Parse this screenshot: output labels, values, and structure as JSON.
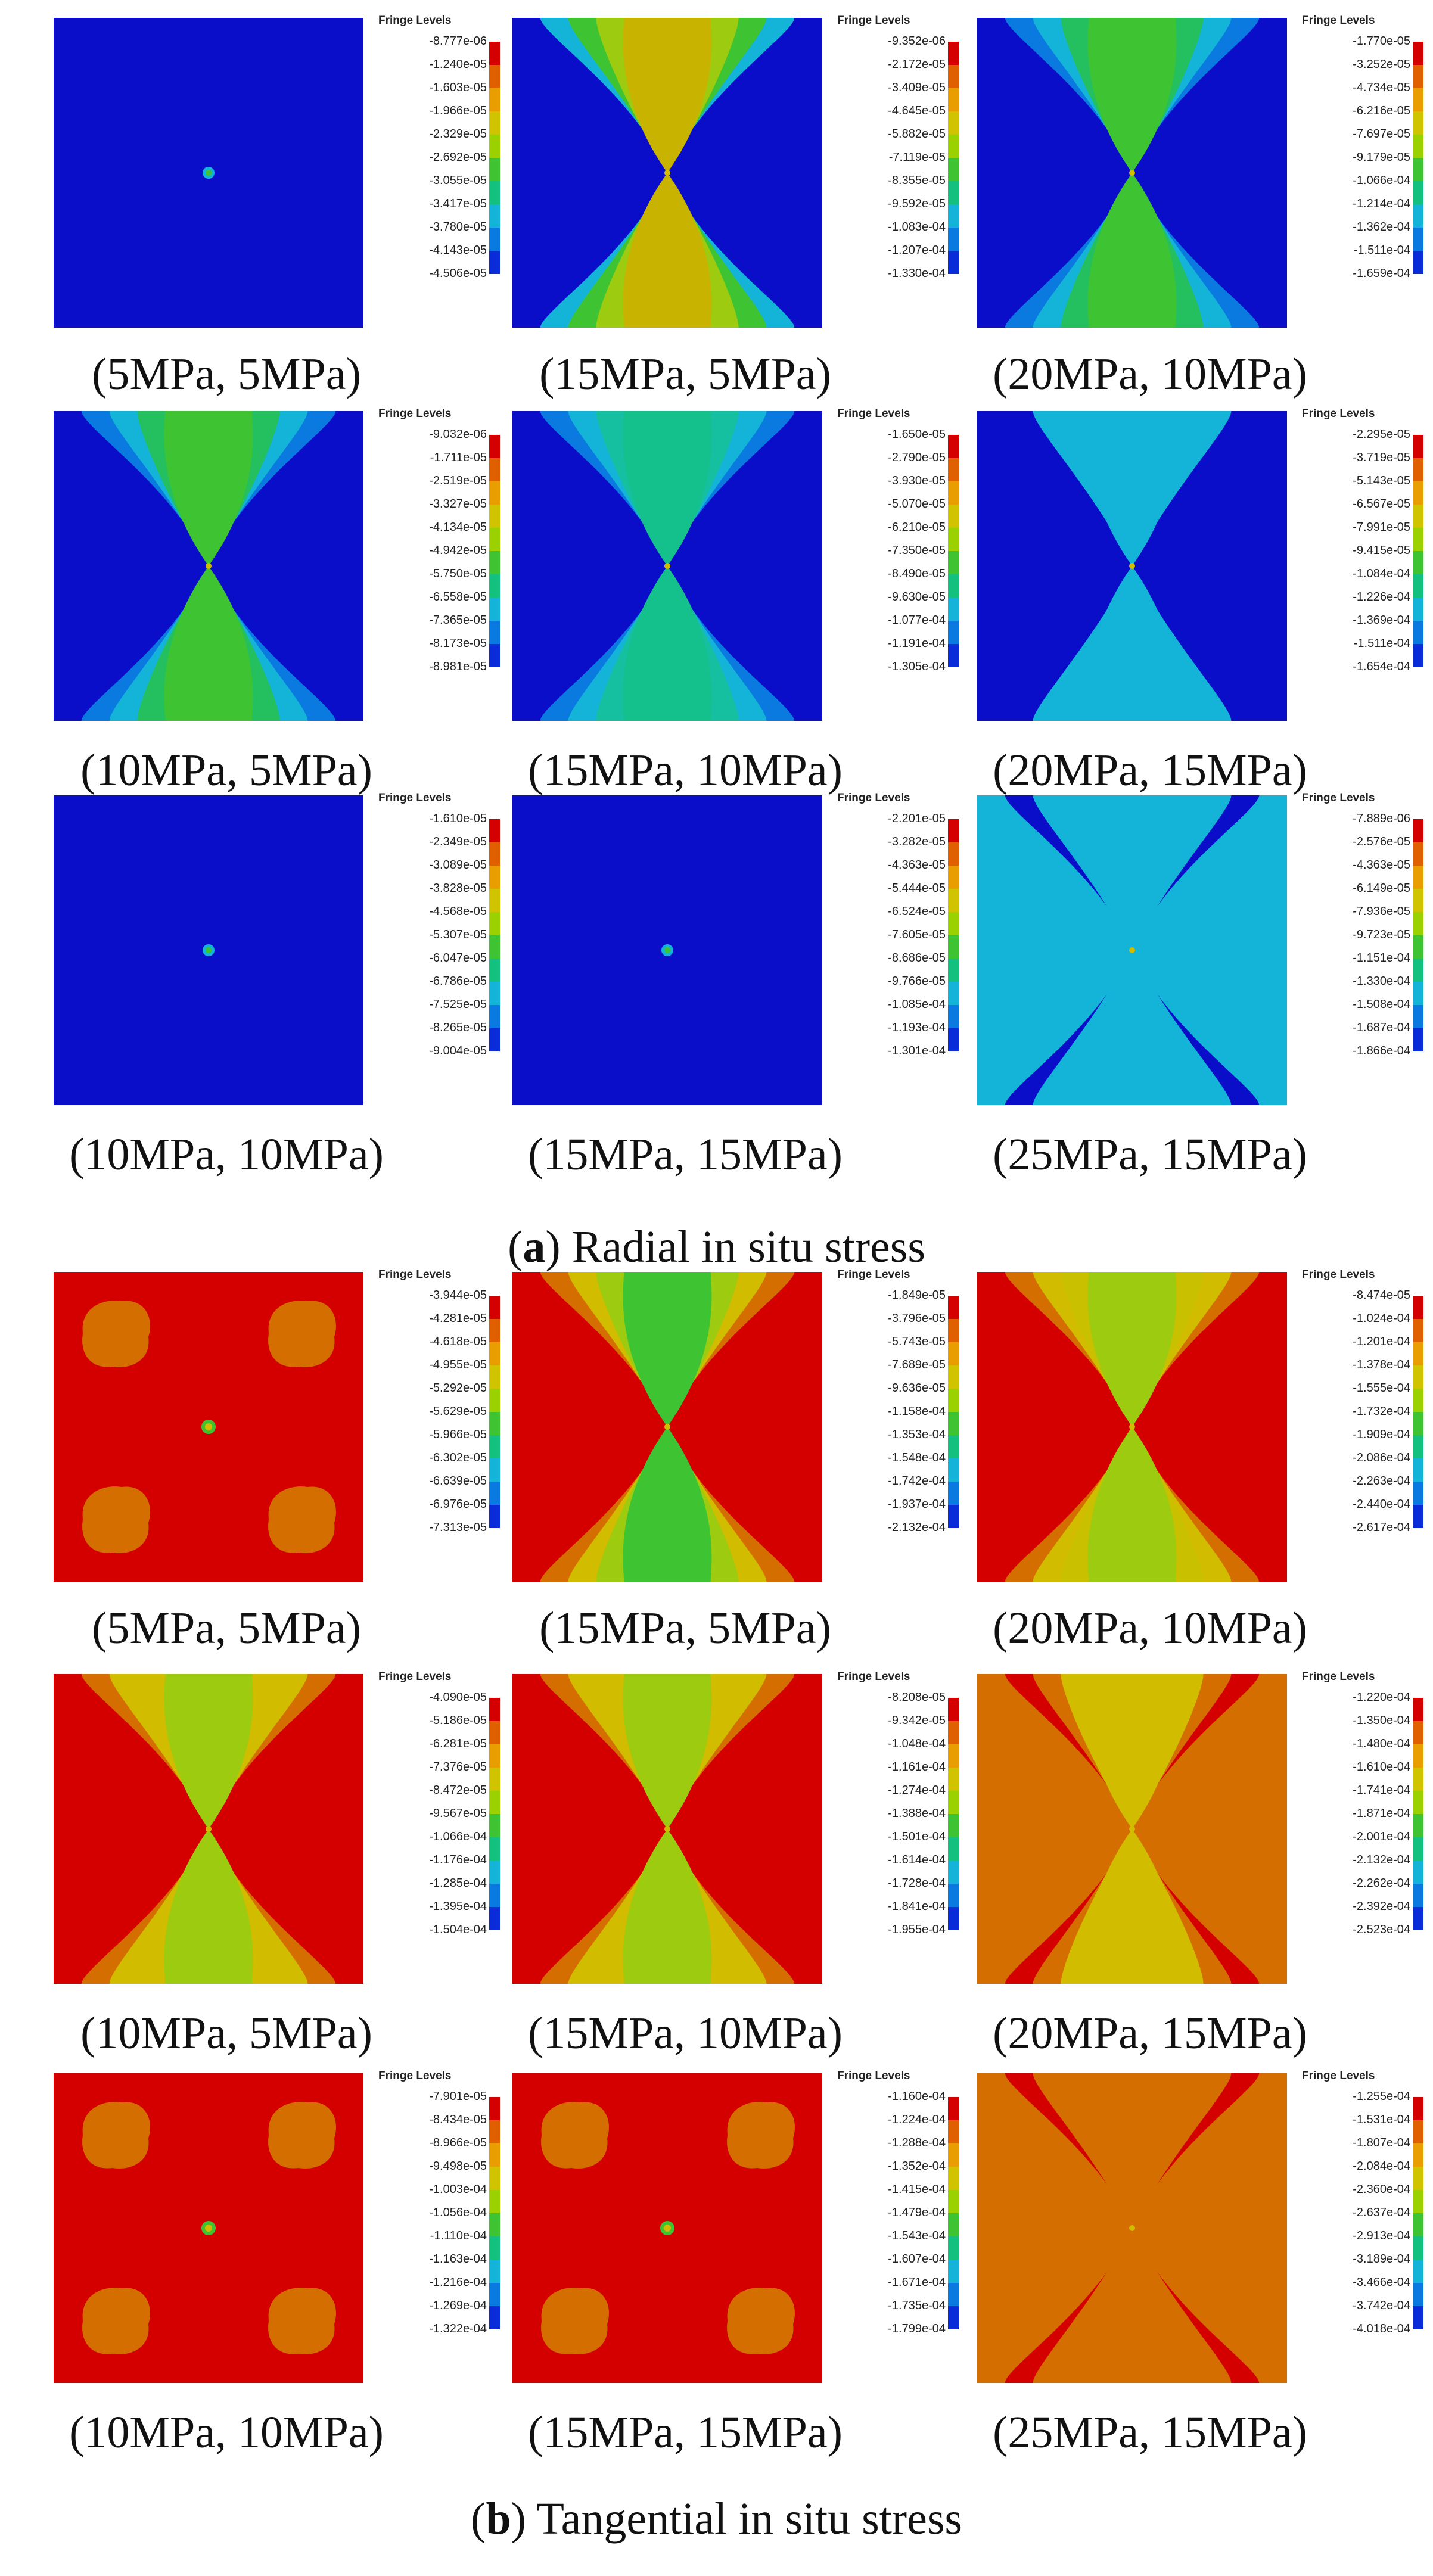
{
  "legend_title": "Fringe Levels",
  "colors": {
    "red": "#d40000",
    "orange_red": "#e06000",
    "orange": "#d46e00",
    "yellow_orange": "#e8a000",
    "yellow": "#d1bc00",
    "yellow_green": "#9ccb0f",
    "green": "#3ec432",
    "green2": "#24bf5f",
    "teal": "#12bfa9",
    "cyan": "#14b4d8",
    "sky": "#0a7ae0",
    "blue": "#0c1cd0",
    "navy": "#0a0ec8"
  },
  "legend_colors": [
    "#d40000",
    "#e06000",
    "#e89d00",
    "#d0c400",
    "#9bd100",
    "#3ec432",
    "#14c07e",
    "#14b4d8",
    "#0a7ae0",
    "#0a2cd8",
    "#0a0ec8"
  ],
  "sections": [
    {
      "title_prefix": "(",
      "title_letter": "a",
      "title_suffix": ") Radial in situ stress",
      "panels": [
        {
          "caption": "(5MPa, 5MPa)",
          "legend": [
            "-8.777e-06",
            "-1.240e-05",
            "-1.603e-05",
            "-1.966e-05",
            "-2.329e-05",
            "-2.692e-05",
            "-3.055e-05",
            "-3.417e-05",
            "-3.780e-05",
            "-4.143e-05",
            "-4.506e-05"
          ],
          "pattern": "uniform",
          "palette": [
            "#0a0ec8",
            "#0a0ec8",
            "#0a0ec8",
            "#0a0ec8"
          ]
        },
        {
          "caption": "(15MPa, 5MPa)",
          "legend": [
            "-9.352e-06",
            "-2.172e-05",
            "-3.409e-05",
            "-4.645e-05",
            "-5.882e-05",
            "-7.119e-05",
            "-8.355e-05",
            "-9.592e-05",
            "-1.083e-04",
            "-1.207e-04",
            "-1.330e-04"
          ],
          "pattern": "xcross",
          "palette": [
            "#0a0ec8",
            "#14b4d8",
            "#3ec432",
            "#9ccb0f",
            "#c8b400"
          ]
        },
        {
          "caption": "(20MPa, 10MPa)",
          "legend": [
            "-1.770e-05",
            "-3.252e-05",
            "-4.734e-05",
            "-6.216e-05",
            "-7.697e-05",
            "-9.179e-05",
            "-1.066e-04",
            "-1.214e-04",
            "-1.362e-04",
            "-1.511e-04",
            "-1.659e-04"
          ],
          "pattern": "xcross",
          "palette": [
            "#0a0ec8",
            "#0a7ae0",
            "#14b4d8",
            "#24bf5f",
            "#3ec432"
          ]
        },
        {
          "caption": "(10MPa, 5MPa)",
          "legend": [
            "-9.032e-06",
            "-1.711e-05",
            "-2.519e-05",
            "-3.327e-05",
            "-4.134e-05",
            "-4.942e-05",
            "-5.750e-05",
            "-6.558e-05",
            "-7.365e-05",
            "-8.173e-05",
            "-8.981e-05"
          ],
          "pattern": "xcross",
          "palette": [
            "#0a0ec8",
            "#0a7ae0",
            "#14b4d8",
            "#24bf5f",
            "#3ec432"
          ]
        },
        {
          "caption": "(15MPa, 10MPa)",
          "legend": [
            "-1.650e-05",
            "-2.790e-05",
            "-3.930e-05",
            "-5.070e-05",
            "-6.210e-05",
            "-7.350e-05",
            "-8.490e-05",
            "-9.630e-05",
            "-1.077e-04",
            "-1.191e-04",
            "-1.305e-04"
          ],
          "pattern": "xcross",
          "palette": [
            "#0a0ec8",
            "#0a7ae0",
            "#14b4d8",
            "#14c0a0",
            "#14c08c"
          ]
        },
        {
          "caption": "(20MPa, 15MPa)",
          "legend": [
            "-2.295e-05",
            "-3.719e-05",
            "-5.143e-05",
            "-6.567e-05",
            "-7.991e-05",
            "-9.415e-05",
            "-1.084e-04",
            "-1.226e-04",
            "-1.369e-04",
            "-1.511e-04",
            "-1.654e-04"
          ],
          "pattern": "xcross",
          "palette": [
            "#0a0ec8",
            "#0a0ec8",
            "#14b4d8",
            "#14b4d8",
            "#14b4d8"
          ]
        },
        {
          "caption": "(10MPa, 10MPa)",
          "legend": [
            "-1.610e-05",
            "-2.349e-05",
            "-3.089e-05",
            "-3.828e-05",
            "-4.568e-05",
            "-5.307e-05",
            "-6.047e-05",
            "-6.786e-05",
            "-7.525e-05",
            "-8.265e-05",
            "-9.004e-05"
          ],
          "pattern": "uniform",
          "palette": [
            "#0a0ec8",
            "#0a0ec8",
            "#0a0ec8",
            "#0a0ec8"
          ]
        },
        {
          "caption": "(15MPa, 15MPa)",
          "legend": [
            "-2.201e-05",
            "-3.282e-05",
            "-4.363e-05",
            "-5.444e-05",
            "-6.524e-05",
            "-7.605e-05",
            "-8.686e-05",
            "-9.766e-05",
            "-1.085e-04",
            "-1.193e-04",
            "-1.301e-04"
          ],
          "pattern": "uniform",
          "palette": [
            "#0a0ec8",
            "#0a0ec8",
            "#0a0ec8",
            "#0a0ec8"
          ]
        },
        {
          "caption": "(25MPa, 15MPa)",
          "legend": [
            "-7.889e-06",
            "-2.576e-05",
            "-4.363e-05",
            "-6.149e-05",
            "-7.936e-05",
            "-9.723e-05",
            "-1.151e-04",
            "-1.330e-04",
            "-1.508e-04",
            "-1.687e-04",
            "-1.866e-04"
          ],
          "pattern": "xcross",
          "palette": [
            "#14b4d8",
            "#0a0ec8",
            "#14b4d8",
            "#14b4d8",
            "#14b4d8"
          ]
        }
      ]
    },
    {
      "title_prefix": "(",
      "title_letter": "b",
      "title_suffix": ") Tangential in situ stress",
      "panels": [
        {
          "caption": "(5MPa, 5MPa)",
          "legend": [
            "-3.944e-05",
            "-4.281e-05",
            "-4.618e-05",
            "-4.955e-05",
            "-5.292e-05",
            "-5.629e-05",
            "-5.966e-05",
            "-6.302e-05",
            "-6.639e-05",
            "-6.976e-05",
            "-7.313e-05"
          ],
          "pattern": "blobs",
          "palette": [
            "#d40000",
            "#d46e00"
          ]
        },
        {
          "caption": "(15MPa, 5MPa)",
          "legend": [
            "-1.849e-05",
            "-3.796e-05",
            "-5.743e-05",
            "-7.689e-05",
            "-9.636e-05",
            "-1.158e-04",
            "-1.353e-04",
            "-1.548e-04",
            "-1.742e-04",
            "-1.937e-04",
            "-2.132e-04"
          ],
          "pattern": "xcross",
          "palette": [
            "#d40000",
            "#d46e00",
            "#d1bc00",
            "#9ccb0f",
            "#3ec432"
          ]
        },
        {
          "caption": "(20MPa, 10MPa)",
          "legend": [
            "-8.474e-05",
            "-1.024e-04",
            "-1.201e-04",
            "-1.378e-04",
            "-1.555e-04",
            "-1.732e-04",
            "-1.909e-04",
            "-2.086e-04",
            "-2.263e-04",
            "-2.440e-04",
            "-2.617e-04"
          ],
          "pattern": "xcross",
          "palette": [
            "#d40000",
            "#d46e00",
            "#d1bc00",
            "#c9c000",
            "#9ccb0f"
          ]
        },
        {
          "caption": "(10MPa, 5MPa)",
          "legend": [
            "-4.090e-05",
            "-5.186e-05",
            "-6.281e-05",
            "-7.376e-05",
            "-8.472e-05",
            "-9.567e-05",
            "-1.066e-04",
            "-1.176e-04",
            "-1.285e-04",
            "-1.395e-04",
            "-1.504e-04"
          ],
          "pattern": "xcross",
          "palette": [
            "#d40000",
            "#d46e00",
            "#d1bc00",
            "#d1bc00",
            "#9ccb0f"
          ]
        },
        {
          "caption": "(15MPa, 10MPa)",
          "legend": [
            "-8.208e-05",
            "-9.342e-05",
            "-1.048e-04",
            "-1.161e-04",
            "-1.274e-04",
            "-1.388e-04",
            "-1.501e-04",
            "-1.614e-04",
            "-1.728e-04",
            "-1.841e-04",
            "-1.955e-04"
          ],
          "pattern": "xcross",
          "palette": [
            "#d40000",
            "#d46e00",
            "#d1bc00",
            "#d1bc00",
            "#9ccb0f"
          ]
        },
        {
          "caption": "(20MPa, 15MPa)",
          "legend": [
            "-1.220e-04",
            "-1.350e-04",
            "-1.480e-04",
            "-1.610e-04",
            "-1.741e-04",
            "-1.871e-04",
            "-2.001e-04",
            "-2.132e-04",
            "-2.262e-04",
            "-2.392e-04",
            "-2.523e-04"
          ],
          "pattern": "xcross",
          "palette": [
            "#d46e00",
            "#d40000",
            "#d46e00",
            "#d1bc00",
            "#d1bc00"
          ]
        },
        {
          "caption": "(10MPa, 10MPa)",
          "legend": [
            "-7.901e-05",
            "-8.434e-05",
            "-8.966e-05",
            "-9.498e-05",
            "-1.003e-04",
            "-1.056e-04",
            "-1.110e-04",
            "-1.163e-04",
            "-1.216e-04",
            "-1.269e-04",
            "-1.322e-04"
          ],
          "pattern": "blobs",
          "palette": [
            "#d40000",
            "#d46e00"
          ]
        },
        {
          "caption": "(15MPa, 15MPa)",
          "legend": [
            "-1.160e-04",
            "-1.224e-04",
            "-1.288e-04",
            "-1.352e-04",
            "-1.415e-04",
            "-1.479e-04",
            "-1.543e-04",
            "-1.607e-04",
            "-1.671e-04",
            "-1.735e-04",
            "-1.799e-04"
          ],
          "pattern": "blobs",
          "palette": [
            "#d40000",
            "#d46e00"
          ]
        },
        {
          "caption": "(25MPa, 15MPa)",
          "legend": [
            "-1.255e-04",
            "-1.531e-04",
            "-1.807e-04",
            "-2.084e-04",
            "-2.360e-04",
            "-2.637e-04",
            "-2.913e-04",
            "-3.189e-04",
            "-3.466e-04",
            "-3.742e-04",
            "-4.018e-04"
          ],
          "pattern": "xcross",
          "palette": [
            "#d46e00",
            "#d40000",
            "#d46e00",
            "#d46e00",
            "#d46e00"
          ]
        }
      ]
    }
  ]
}
